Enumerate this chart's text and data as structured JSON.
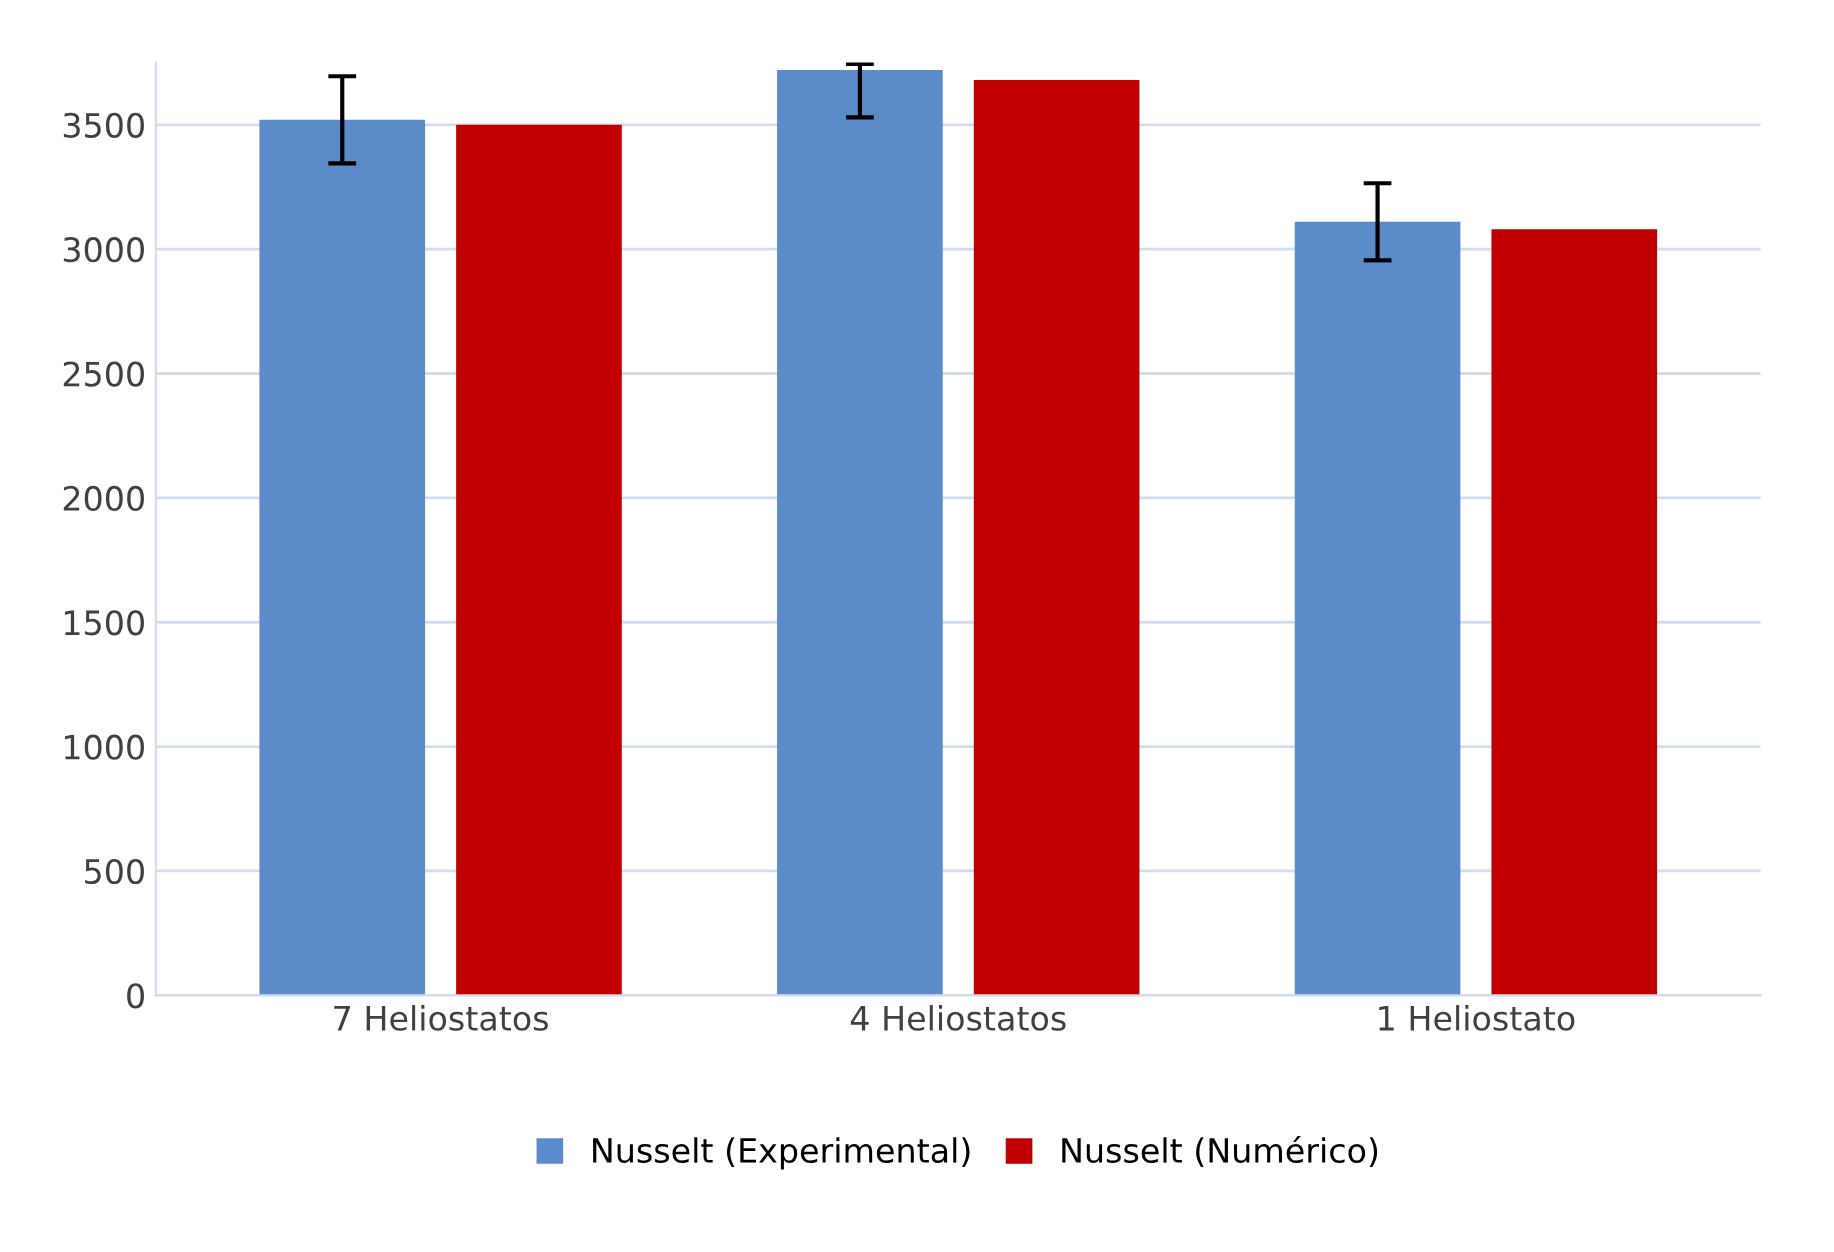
{
  "chart_data": {
    "type": "bar",
    "categories": [
      "7 Heliostatos",
      "4 Heliostatos",
      "1 Heliostato"
    ],
    "series": [
      {
        "name": "Nusselt (Experimental)",
        "color": "#5b8bc9",
        "values": [
          3520,
          3720,
          3110
        ],
        "errors": [
          175,
          [
            3530,
            3745
          ],
          155
        ]
      },
      {
        "name": "Nusselt (Numérico)",
        "color": "#c00000",
        "values": [
          3500,
          3680,
          3080
        ]
      }
    ],
    "ylim": [
      0,
      3750
    ],
    "yticks": [
      0,
      500,
      1000,
      1500,
      2000,
      2500,
      3000,
      3500
    ],
    "grid": "y",
    "legend": "bottom"
  }
}
